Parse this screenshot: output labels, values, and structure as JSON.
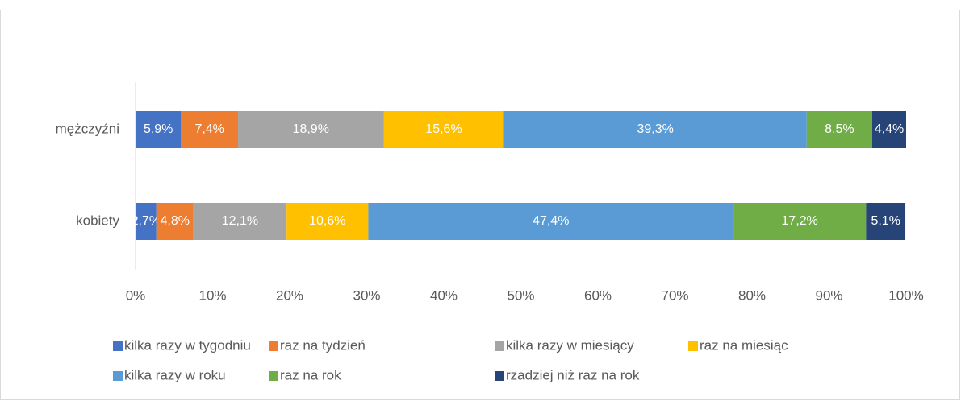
{
  "chart_data": {
    "type": "stacked-bar-horizontal",
    "categories": [
      "mężczyźni",
      "kobiety"
    ],
    "series": [
      {
        "name": "kilka razy w tygodniu",
        "color": "#4472c4",
        "values": [
          5.9,
          2.7
        ],
        "value_labels": [
          "5,9%",
          "2,7%"
        ]
      },
      {
        "name": "raz na tydzień",
        "color": "#ed7d31",
        "values": [
          7.4,
          4.8
        ],
        "value_labels": [
          "7,4%",
          "4,8%"
        ]
      },
      {
        "name": "kilka razy w miesiący",
        "color": "#a5a5a5",
        "values": [
          18.9,
          12.1
        ],
        "value_labels": [
          "18,9%",
          "12,1%"
        ]
      },
      {
        "name": "raz na miesiąc",
        "color": "#ffc000",
        "values": [
          15.6,
          10.6
        ],
        "value_labels": [
          "15,6%",
          "10,6%"
        ]
      },
      {
        "name": "kilka razy w roku",
        "color": "#5b9bd5",
        "values": [
          39.3,
          47.4
        ],
        "value_labels": [
          "39,3%",
          "47,4%"
        ]
      },
      {
        "name": "raz na rok",
        "color": "#70ad47",
        "values": [
          8.5,
          17.2
        ],
        "value_labels": [
          "8,5%",
          "17,2%"
        ]
      },
      {
        "name": "rzadziej niż raz na rok",
        "color": "#264478",
        "values": [
          4.4,
          5.1
        ],
        "value_labels": [
          "4,4%",
          "5,1%"
        ]
      }
    ],
    "xlim": [
      0,
      100
    ],
    "xticks": [
      {
        "value": 0,
        "label": "0%"
      },
      {
        "value": 10,
        "label": "10%"
      },
      {
        "value": 20,
        "label": "20%"
      },
      {
        "value": 30,
        "label": "30%"
      },
      {
        "value": 40,
        "label": "40%"
      },
      {
        "value": 50,
        "label": "50%"
      },
      {
        "value": 60,
        "label": "60%"
      },
      {
        "value": 70,
        "label": "70%"
      },
      {
        "value": 80,
        "label": "80%"
      },
      {
        "value": 90,
        "label": "90%"
      },
      {
        "value": 100,
        "label": "100%"
      }
    ],
    "legend": "bottom"
  }
}
